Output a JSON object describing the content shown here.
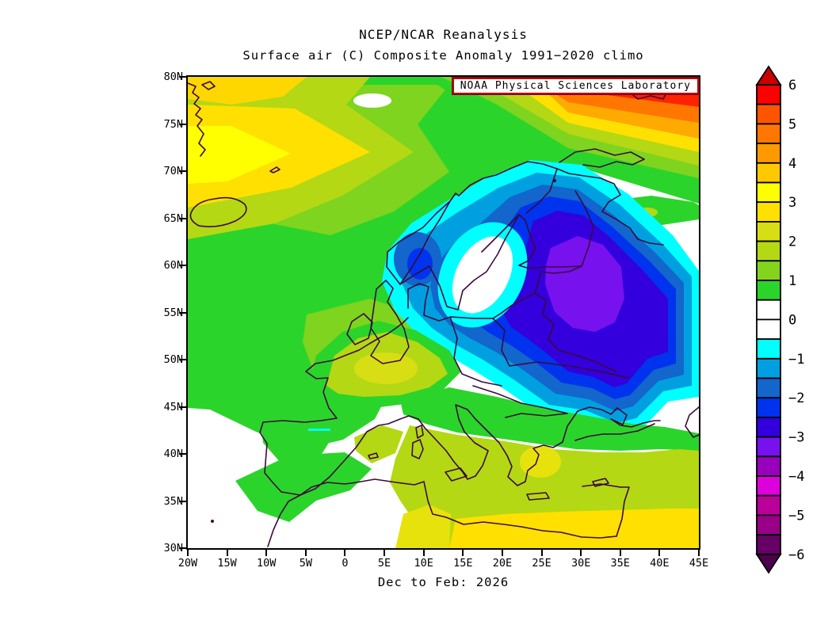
{
  "title": {
    "line1": "NCEP/NCAR Reanalysis",
    "line2": "Surface air (C) Composite Anomaly 1991−2020 climo"
  },
  "overlay_label": "NOAA Physical Sciences Laboratory",
  "caption": "Dec to Feb: 2026",
  "axes": {
    "lat": [
      "80N",
      "75N",
      "70N",
      "65N",
      "60N",
      "55N",
      "50N",
      "45N",
      "40N",
      "35N",
      "30N"
    ],
    "lon": [
      "20W",
      "15W",
      "10W",
      "5W",
      "0",
      "5E",
      "10E",
      "15E",
      "20E",
      "25E",
      "30E",
      "35E",
      "40E",
      "45E"
    ]
  },
  "colorbar": {
    "unit": "C",
    "min": -6,
    "max": 6,
    "step": 0.5,
    "tick_labels": [
      "6",
      "5",
      "4",
      "3",
      "2",
      "1",
      "0",
      "−1",
      "−2",
      "−3",
      "−4",
      "−5",
      "−6"
    ],
    "segment_colors_top_to_bottom": [
      "#ff0000",
      "#ff5500",
      "#ff7700",
      "#ff9900",
      "#ffc800",
      "#ffff00",
      "#ffe000",
      "#d8de14",
      "#b4d814",
      "#84d41e",
      "#2bd42b",
      "#ffffff",
      "#ffffff",
      "#00ffff",
      "#00a0e0",
      "#1266cc",
      "#0033ee",
      "#3300dd",
      "#7711ee",
      "#9900bb",
      "#dd00dd",
      "#bb0099",
      "#990088",
      "#660066"
    ],
    "arrow_top_color": "#cc0000",
    "arrow_bottom_color": "#4d004d"
  },
  "map": {
    "coast_color": "#3b0a3b",
    "frame_color": "#000000",
    "anomaly_summary": [
      {
        "region": "Arctic / Barents Sea band along the top edge",
        "anomaly_c": "+3 to more than +6"
      },
      {
        "region": "Northeast Atlantic near SE Greenland around 75N",
        "anomaly_c": "+2 to +3"
      },
      {
        "region": "Scandinavia, Baltic states, Belarus and western Russia",
        "anomaly_c": "−1 to −3.5, coldest core near Belarus / western Russia"
      },
      {
        "region": "Western and southern Europe, Mediterranean, North Africa",
        "anomaly_c": "+1 to +3"
      },
      {
        "region": "Bay of Biscay, interior Iberia, SW Atlantic corner, Ukraine fringe, Novaya Zemlya corridor",
        "anomaly_c": "−0.5 to +0.5 (near normal)"
      }
    ]
  }
}
